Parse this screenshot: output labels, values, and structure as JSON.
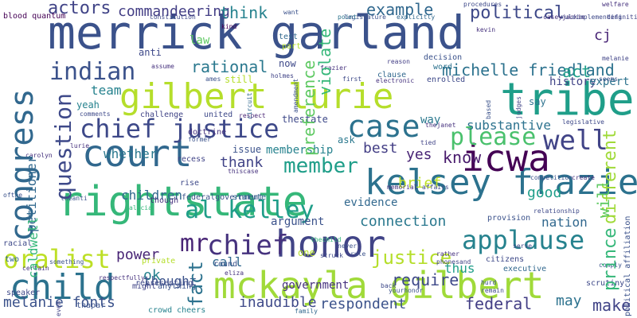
{
  "word_cloud": {
    "words": [
      {
        "text": "merrick garland",
        "color": "#3b528b"
      },
      {
        "text": "gilbert lurie",
        "color": "#b5de2b"
      },
      {
        "text": "tribe",
        "color": "#1f9e89"
      },
      {
        "text": "court",
        "color": "#31688e"
      },
      {
        "text": "rightstate",
        "color": "#35b779"
      },
      {
        "text": "mckayla gilbert",
        "color": "#a0da39"
      },
      {
        "text": "chief justice",
        "color": "#3e4989"
      },
      {
        "text": "congress",
        "color": "#31688e"
      },
      {
        "text": "honor",
        "color": "#414487"
      },
      {
        "text": "kelsey frazier",
        "color": "#2c728e"
      },
      {
        "text": "icwa",
        "color": "#440154"
      },
      {
        "text": "child",
        "color": "#2c728e"
      },
      {
        "text": "applause",
        "color": "#26828e"
      },
      {
        "text": "case",
        "color": "#2c728e"
      },
      {
        "text": "chief",
        "color": "#46327e"
      },
      {
        "text": "oralist",
        "color": "#bddf26"
      },
      {
        "text": "question",
        "color": "#3e4989"
      },
      {
        "text": "al kelley",
        "color": "#1f9e89"
      },
      {
        "text": "well",
        "color": "#414487"
      },
      {
        "text": "please",
        "color": "#4ac16d"
      },
      {
        "text": "mr",
        "color": "#482475"
      },
      {
        "text": "indian",
        "color": "#3b528b"
      },
      {
        "text": "michelle friedland",
        "color": "#2c728e"
      },
      {
        "text": "member",
        "color": "#1f9e89"
      },
      {
        "text": "commandeering",
        "color": "#433e85"
      },
      {
        "text": "political",
        "color": "#3e4989"
      },
      {
        "text": "actors",
        "color": "#414487"
      },
      {
        "text": "example",
        "color": "#31688e"
      },
      {
        "text": "think",
        "color": "#26828e"
      },
      {
        "text": "rational",
        "color": "#2a788e"
      },
      {
        "text": "preference",
        "color": "#5ec962"
      },
      {
        "text": "violate",
        "color": "#35b779"
      },
      {
        "text": "know",
        "color": "#481a6c"
      },
      {
        "text": "act",
        "color": "#1f9e89"
      },
      {
        "text": "different",
        "color": "#a0da39"
      },
      {
        "text": "prince",
        "color": "#35b779"
      },
      {
        "text": "melanie fonts",
        "color": "#3b528b"
      },
      {
        "text": "inaudible",
        "color": "#3e4989"
      },
      {
        "text": "federal",
        "color": "#433e85"
      },
      {
        "text": "make",
        "color": "#414487"
      },
      {
        "text": "may",
        "color": "#2c728e"
      },
      {
        "text": "respondent",
        "color": "#3b528b"
      },
      {
        "text": "government",
        "color": "#46327e"
      },
      {
        "text": "justice",
        "color": "#b5de2b"
      },
      {
        "text": "require",
        "color": "#3e4989"
      },
      {
        "text": "nation",
        "color": "#31688e"
      },
      {
        "text": "thus",
        "color": "#1f9e89"
      },
      {
        "text": "connection",
        "color": "#2a788e"
      },
      {
        "text": "argument",
        "color": "#3b528b"
      },
      {
        "text": "children",
        "color": "#31688e"
      },
      {
        "text": "power",
        "color": "#482475"
      },
      {
        "text": "fact",
        "color": "#2c728e"
      },
      {
        "text": "ok",
        "color": "#26828e"
      },
      {
        "text": "thought",
        "color": "#3b528b"
      },
      {
        "text": "call",
        "color": "#31688e"
      },
      {
        "text": "whether",
        "color": "#2a788e"
      },
      {
        "text": "team",
        "color": "#26828e"
      },
      {
        "text": "history",
        "color": "#414487"
      },
      {
        "text": "expert",
        "color": "#2c728e"
      },
      {
        "text": "substantive",
        "color": "#2c728e"
      },
      {
        "text": "way",
        "color": "#2a788e"
      },
      {
        "text": "yes",
        "color": "#482475"
      },
      {
        "text": "best",
        "color": "#433e85"
      },
      {
        "text": "brief",
        "color": "#bddf26"
      },
      {
        "text": "good",
        "color": "#1f9e89"
      },
      {
        "text": "evidence",
        "color": "#31688e"
      },
      {
        "text": "ask",
        "color": "#2a788e"
      },
      {
        "text": "thank",
        "color": "#414487"
      },
      {
        "text": "issue",
        "color": "#3b528b"
      },
      {
        "text": "membership",
        "color": "#26828e"
      },
      {
        "text": "thestate",
        "color": "#3e4989"
      },
      {
        "text": "law",
        "color": "#5ec962"
      },
      {
        "text": "anti",
        "color": "#3e4989"
      },
      {
        "text": "still",
        "color": "#b5de2b"
      },
      {
        "text": "now",
        "color": "#3e4989"
      },
      {
        "text": "yeah",
        "color": "#26828e"
      },
      {
        "text": "petitioner",
        "color": "#31688e"
      },
      {
        "text": "caldwell",
        "color": "#35b779"
      },
      {
        "text": "say",
        "color": "#2c728e"
      },
      {
        "text": "will",
        "color": "#5ec962"
      },
      {
        "text": "cj",
        "color": "#482475"
      },
      {
        "text": "blood quantum",
        "color": "#440154"
      },
      {
        "text": "constitution",
        "color": "#3e4989"
      },
      {
        "text": "legislature",
        "color": "#3b528b"
      },
      {
        "text": "explicitly",
        "color": "#31688e"
      },
      {
        "text": "procedures",
        "color": "#3e4989"
      },
      {
        "text": "definition",
        "color": "#414487"
      },
      {
        "text": "welfare",
        "color": "#46327e"
      },
      {
        "text": "decision",
        "color": "#3b528b"
      },
      {
        "text": "word",
        "color": "#2c728e"
      },
      {
        "text": "enrolled",
        "color": "#3e4989"
      },
      {
        "text": "holmes",
        "color": "#414487"
      },
      {
        "text": "ames",
        "color": "#3b528b"
      },
      {
        "text": "frazier",
        "color": "#46327e"
      },
      {
        "text": "clause",
        "color": "#31688e"
      },
      {
        "text": "electronic",
        "color": "#46327e"
      },
      {
        "text": "first",
        "color": "#3e4989"
      },
      {
        "text": "reason",
        "color": "#433e85"
      },
      {
        "text": "test",
        "color": "#31688e"
      },
      {
        "text": "part",
        "color": "#b5de2b"
      },
      {
        "text": "kind",
        "color": "#440154"
      },
      {
        "text": "want",
        "color": "#3b528b"
      },
      {
        "text": "point",
        "color": "#2c728e"
      },
      {
        "text": "assume",
        "color": "#46327e"
      },
      {
        "text": "circuit",
        "color": "#31688e"
      },
      {
        "text": "amendment",
        "color": "#3b528b"
      },
      {
        "text": "respect",
        "color": "#482475"
      },
      {
        "text": "comments",
        "color": "#3e4989"
      },
      {
        "text": "challenge",
        "color": "#414487"
      },
      {
        "text": "doctrine",
        "color": "#46327e"
      },
      {
        "text": "former",
        "color": "#3b528b"
      },
      {
        "text": "united",
        "color": "#3e4989"
      },
      {
        "text": "recess",
        "color": "#414487"
      },
      {
        "text": "thiscase",
        "color": "#46327e"
      },
      {
        "text": "rise",
        "color": "#3e4989"
      },
      {
        "text": "federalgovernment",
        "color": "#3b528b"
      },
      {
        "text": "statute",
        "color": "#31688e"
      },
      {
        "text": "though",
        "color": "#46327e"
      },
      {
        "text": "theanti",
        "color": "#3b528b"
      },
      {
        "text": "alicia",
        "color": "#35b779"
      },
      {
        "text": "private",
        "color": "#b5de2b"
      },
      {
        "text": "round",
        "color": "#3b528b"
      },
      {
        "text": "representing",
        "color": "#3e4989"
      },
      {
        "text": "respectfully",
        "color": "#46327e"
      },
      {
        "text": "eliza",
        "color": "#46327e"
      },
      {
        "text": "might",
        "color": "#414487"
      },
      {
        "text": "anything",
        "color": "#3b528b"
      },
      {
        "text": "crowd cheers",
        "color": "#26828e"
      },
      {
        "text": "family",
        "color": "#31688e"
      },
      {
        "text": "yourhonor",
        "color": "#3b528b"
      },
      {
        "text": "rather",
        "color": "#46327e"
      },
      {
        "text": "phonesand",
        "color": "#414487"
      },
      {
        "text": "citizens",
        "color": "#3e4989"
      },
      {
        "text": "executive",
        "color": "#31688e"
      },
      {
        "text": "comply",
        "color": "#3b528b"
      },
      {
        "text": "scrutiny",
        "color": "#3e4989"
      },
      {
        "text": "political affiliation",
        "color": "#3b528b"
      },
      {
        "text": "serve",
        "color": "#3e4989"
      },
      {
        "text": "provision",
        "color": "#3b528b"
      },
      {
        "text": "relationship",
        "color": "#3e4989"
      },
      {
        "text": "competition",
        "color": "#3b528b"
      },
      {
        "text": "affairs",
        "color": "#3e4989"
      },
      {
        "text": "memorial",
        "color": "#46327e"
      },
      {
        "text": "tied",
        "color": "#414487"
      },
      {
        "text": "thejanet",
        "color": "#46327e"
      },
      {
        "text": "based",
        "color": "#3b528b"
      },
      {
        "text": "judges",
        "color": "#414487"
      },
      {
        "text": "legislative",
        "color": "#3e4989"
      },
      {
        "text": "carolyn",
        "color": "#46327e"
      },
      {
        "text": "lurie",
        "color": "#46327e"
      },
      {
        "text": "ofthe",
        "color": "#3b528b"
      },
      {
        "text": "racial",
        "color": "#3e4989"
      },
      {
        "text": "two",
        "color": "#31688e"
      },
      {
        "text": "certain",
        "color": "#46327e"
      },
      {
        "text": "something",
        "color": "#3b528b"
      },
      {
        "text": "speaker",
        "color": "#3e4989"
      },
      {
        "text": "thapar",
        "color": "#3b528b"
      },
      {
        "text": "even",
        "color": "#414487"
      },
      {
        "text": "never",
        "color": "#3b528b"
      },
      {
        "text": "one",
        "color": "#b5de2b"
      },
      {
        "text": "struck",
        "color": "#3e4989"
      },
      {
        "text": "rule",
        "color": "#3b528b"
      },
      {
        "text": "back",
        "color": "#3e4989"
      },
      {
        "text": "hurd",
        "color": "#3b528b"
      },
      {
        "text": "remain",
        "color": "#3e4989"
      },
      {
        "text": "create",
        "color": "#46327e"
      },
      {
        "text": "melanie",
        "color": "#414487"
      },
      {
        "text": "seems",
        "color": "#3b528b"
      },
      {
        "text": "kevin",
        "color": "#46327e"
      },
      {
        "text": "caseyjackie",
        "color": "#46327e"
      },
      {
        "text": "ruleimplementing",
        "color": "#3e4989"
      },
      {
        "text": "thechild",
        "color": "#35b779"
      }
    ]
  }
}
